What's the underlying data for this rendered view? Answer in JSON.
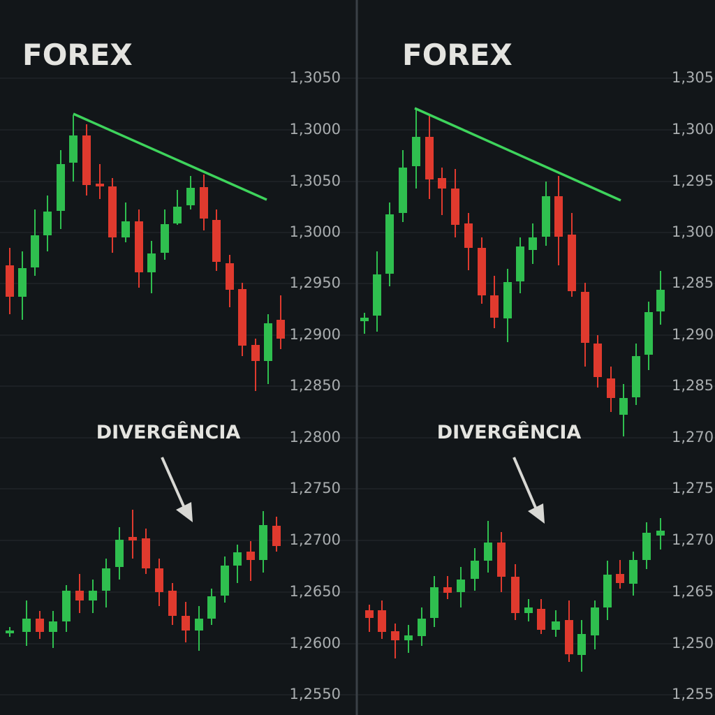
{
  "panels": [
    {
      "title": "FOREX",
      "annotation": "DIVERGÊNCIA",
      "axis_labels": [
        "1,3050",
        "1,3000",
        "1,3050",
        "1,3000",
        "1,2950",
        "1,2900",
        "1,2850",
        "1,2800",
        "1,2750",
        "1,2700",
        "1,2650",
        "1,2600",
        "1,2550"
      ]
    },
    {
      "title": "FOREX",
      "annotation": "DIVERGÊNCIA",
      "axis_labels": [
        "1,305",
        "1,300",
        "1,295",
        "1,300",
        "1,285",
        "1,290",
        "1,285",
        "1,270",
        "1,275",
        "1,270",
        "1,265",
        "1,250",
        "1,255"
      ]
    }
  ]
}
